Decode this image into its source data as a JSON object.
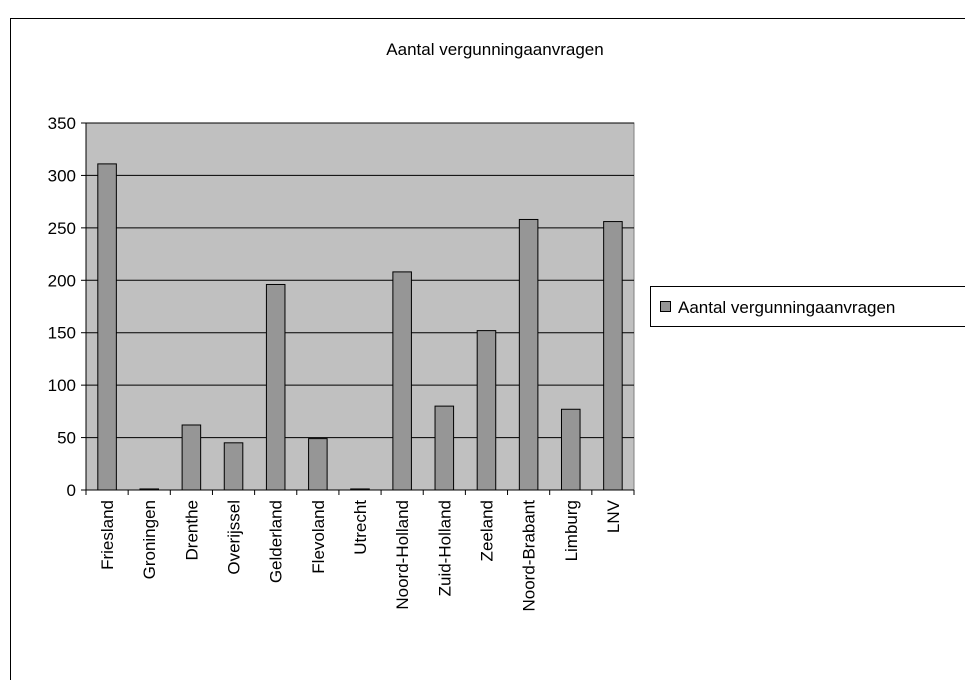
{
  "chart_data": {
    "type": "bar",
    "title": "Aantal vergunningaanvragen",
    "categories": [
      "Friesland",
      "Groningen",
      "Drenthe",
      "Overijssel",
      "Gelderland",
      "Flevoland",
      "Utrecht",
      "Noord-Holland",
      "Zuid-Holland",
      "Zeeland",
      "Noord-Brabant",
      "Limburg",
      "LNV"
    ],
    "series": [
      {
        "name": "Aantal vergunningaanvragen",
        "color": "#969696",
        "values": [
          311,
          1,
          62,
          45,
          196,
          49,
          1,
          208,
          80,
          152,
          258,
          77,
          256
        ]
      }
    ],
    "ylim": [
      0,
      350
    ],
    "yticks": [
      0,
      50,
      100,
      150,
      200,
      250,
      300,
      350
    ],
    "grid": true,
    "legend": "right"
  }
}
